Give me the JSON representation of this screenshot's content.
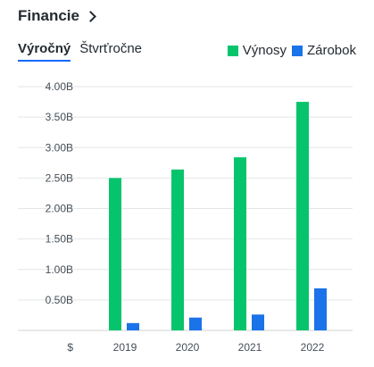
{
  "header": {
    "title": "Financie"
  },
  "tabs": [
    {
      "label": "Výročný",
      "active": true
    },
    {
      "label": "Štvrťročne",
      "active": false
    }
  ],
  "colors": {
    "revenue": "#06c46c",
    "earnings": "#1a73e8",
    "grid": "#e3e6e8",
    "active_tab": "#0f69ff"
  },
  "chart_data": {
    "type": "bar",
    "categories": [
      "2019",
      "2020",
      "2021",
      "2022"
    ],
    "series": [
      {
        "name": "Výnosy",
        "values": [
          2.5,
          2.64,
          2.84,
          3.75
        ]
      },
      {
        "name": "Zárobok",
        "values": [
          0.12,
          0.21,
          0.26,
          0.69
        ]
      }
    ],
    "y_ticks": [
      "4.00B",
      "3.50B",
      "3.00B",
      "2.50B",
      "2.00B",
      "1.50B",
      "1.00B",
      "0.50B"
    ],
    "y_tick_values": [
      4.0,
      3.5,
      3.0,
      2.5,
      2.0,
      1.5,
      1.0,
      0.5
    ],
    "y_base_label": "$",
    "ylim": [
      0,
      4.0
    ],
    "legend_position": "top-right",
    "grid": true
  }
}
